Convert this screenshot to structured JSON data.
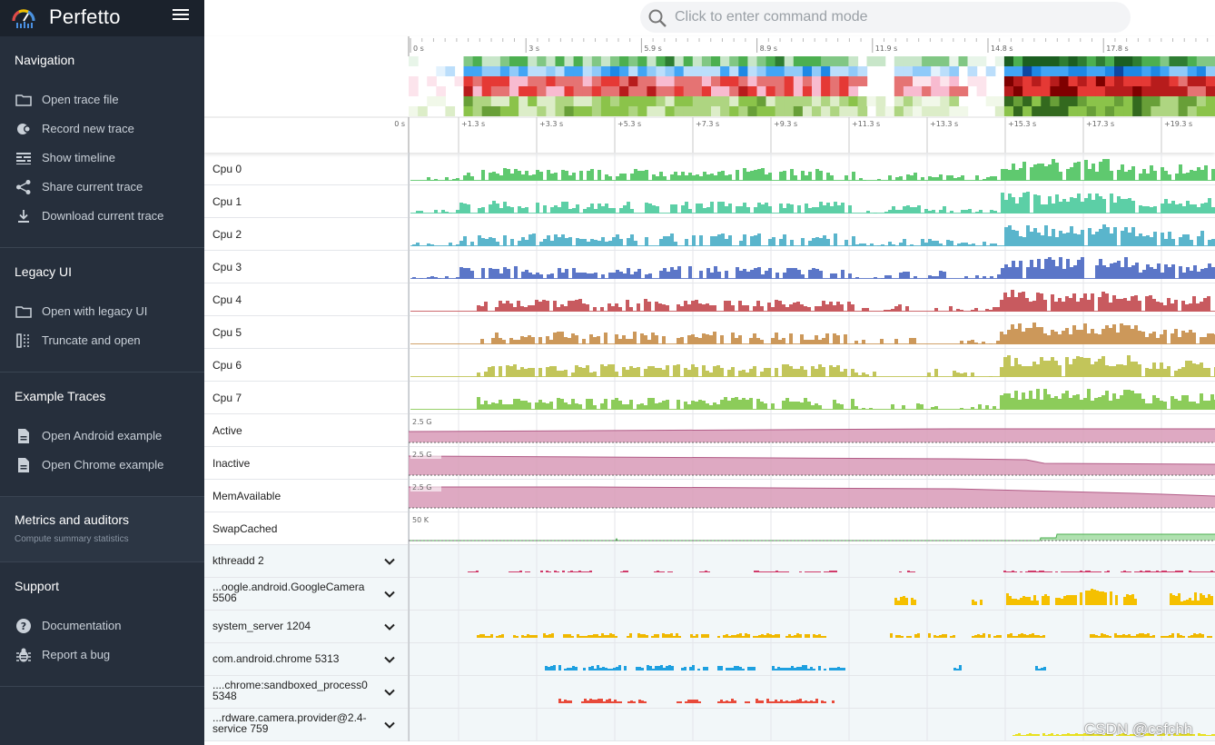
{
  "app": {
    "title": "Perfetto"
  },
  "search": {
    "placeholder": "Click to enter command mode"
  },
  "sidebar": {
    "sections": [
      {
        "title": "Navigation",
        "items": [
          {
            "label": "Open trace file",
            "icon": "folder-icon"
          },
          {
            "label": "Record new trace",
            "icon": "record-icon"
          },
          {
            "label": "Show timeline",
            "icon": "timeline-icon"
          },
          {
            "label": "Share current trace",
            "icon": "share-icon"
          },
          {
            "label": "Download current trace",
            "icon": "download-icon"
          }
        ]
      },
      {
        "title": "Legacy UI",
        "items": [
          {
            "label": "Open with legacy UI",
            "icon": "folder-icon"
          },
          {
            "label": "Truncate and open",
            "icon": "truncate-icon"
          }
        ]
      },
      {
        "title": "Example Traces",
        "items": [
          {
            "label": "Open Android example",
            "icon": "document-icon"
          },
          {
            "label": "Open Chrome example",
            "icon": "document-icon"
          }
        ]
      },
      {
        "title": "Metrics and auditors",
        "subtitle": "Compute summary statistics",
        "items": []
      },
      {
        "title": "Support",
        "items": [
          {
            "label": "Documentation",
            "icon": "help-icon"
          },
          {
            "label": "Report a bug",
            "icon": "bug-icon"
          }
        ]
      }
    ]
  },
  "overview": {
    "ruler_labels": [
      "0 s",
      "3 s",
      "5.9 s",
      "8.9 s",
      "11.9 s",
      "14.8 s",
      "17.8 s"
    ]
  },
  "timeline": {
    "start_label": "0 s",
    "ruler_labels": [
      "+1.3 s",
      "+3.3 s",
      "+5.3 s",
      "+7.3 s",
      "+9.3 s",
      "+11.3 s",
      "+13.3 s",
      "+15.3 s",
      "+17.3 s",
      "+19.3 s"
    ]
  },
  "tracks": {
    "cpu": [
      {
        "name": "Cpu 0",
        "color": "#5fc96f"
      },
      {
        "name": "Cpu 1",
        "color": "#5ccfa6"
      },
      {
        "name": "Cpu 2",
        "color": "#5ab5cc"
      },
      {
        "name": "Cpu 3",
        "color": "#5b76c8"
      },
      {
        "name": "Cpu 4",
        "color": "#c85a5f"
      },
      {
        "name": "Cpu 5",
        "color": "#cc985a"
      },
      {
        "name": "Cpu 6",
        "color": "#c2c55a"
      },
      {
        "name": "Cpu 7",
        "color": "#8ccc5a"
      }
    ],
    "counters": [
      {
        "name": "Active",
        "label": "2.5 G",
        "color": "#d89ab7"
      },
      {
        "name": "Inactive",
        "label": "2.5 G",
        "color": "#d89ab7"
      },
      {
        "name": "MemAvailable",
        "label": "2.5 G",
        "color": "#d89ab7"
      },
      {
        "name": "SwapCached",
        "label": "50 K",
        "color": "#8fd48f"
      }
    ],
    "processes": [
      {
        "name": "kthreadd 2",
        "name2": "",
        "color": "#d03a6a"
      },
      {
        "name": "...oogle.android.GoogleCamera",
        "name2": "5506",
        "color": "#f5c000"
      },
      {
        "name": "system_server 1204",
        "name2": "",
        "color": "#f0b800"
      },
      {
        "name": "com.android.chrome 5313",
        "name2": "",
        "color": "#1ea0e0"
      },
      {
        "name": "....chrome:sandboxed_process0",
        "name2": "5348",
        "color": "#e84a3a"
      },
      {
        "name": "...rdware.camera.provider@2.4-",
        "name2": "service 759",
        "color": "#e8e020"
      }
    ]
  },
  "watermark": "CSDN @csfchh"
}
